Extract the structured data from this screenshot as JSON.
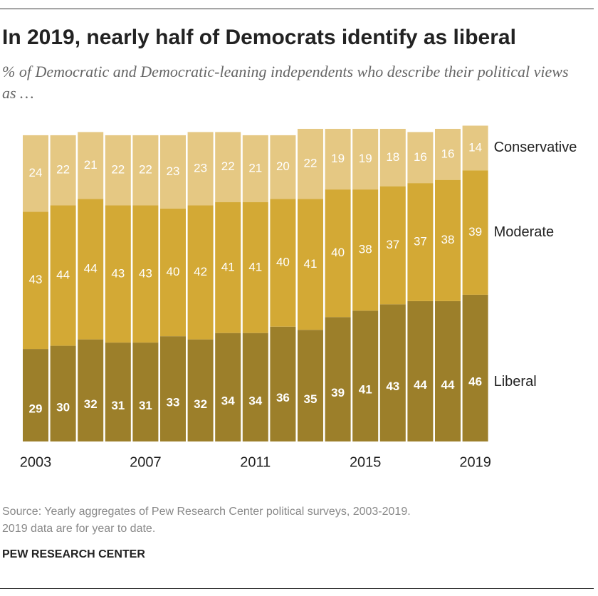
{
  "chart_data": {
    "type": "stacked-bar",
    "title": "In 2019, nearly half of Democrats identify as liberal",
    "subtitle": "% of Democratic and Democratic-leaning independents who describe their political views as …",
    "categories": [
      "2003",
      null,
      null,
      null,
      "2007",
      null,
      null,
      null,
      "2011",
      null,
      null,
      null,
      "2015",
      null,
      null,
      null,
      "2019"
    ],
    "series": [
      {
        "name": "Liberal",
        "color": "#9c7f2a",
        "values": [
          29,
          30,
          32,
          31,
          31,
          33,
          32,
          34,
          34,
          36,
          35,
          39,
          41,
          43,
          44,
          44,
          46
        ]
      },
      {
        "name": "Moderate",
        "color": "#d3a935",
        "values": [
          43,
          44,
          44,
          43,
          43,
          40,
          42,
          41,
          41,
          40,
          41,
          40,
          38,
          37,
          37,
          38,
          39
        ]
      },
      {
        "name": "Conservative",
        "color": "#e5c883",
        "values": [
          24,
          22,
          21,
          22,
          22,
          23,
          23,
          22,
          21,
          20,
          22,
          19,
          19,
          18,
          16,
          16,
          14
        ]
      }
    ],
    "source": [
      "Source: Yearly aggregates of Pew Research Center political surveys, 2003-2019.",
      "2019 data are for year to date."
    ],
    "brand": "PEW RESEARCH CENTER"
  }
}
